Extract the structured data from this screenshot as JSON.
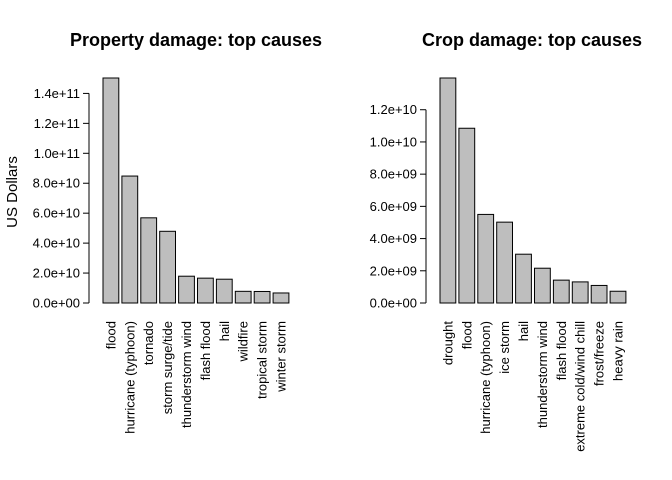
{
  "chart_data": [
    {
      "type": "bar",
      "title": "Property damage: top causes",
      "ylabel": "US Dollars",
      "xlabel": "",
      "categories": [
        "flood",
        "hurricane (typhoon)",
        "tornado",
        "storm surge/tide",
        "thunderstorm wind",
        "flash flood",
        "hail",
        "wildfire",
        "tropical storm",
        "winter storm"
      ],
      "values": [
        150300000000,
        84800000000,
        56900000000,
        47900000000,
        17900000000,
        16600000000,
        15900000000,
        7800000000,
        7700000000,
        6700000000
      ],
      "ylim": [
        0,
        150300000000
      ],
      "yticks": [
        0,
        20000000000,
        40000000000,
        60000000000,
        80000000000,
        100000000000,
        120000000000,
        140000000000
      ],
      "ytick_labels": [
        "0.0e+00",
        "2.0e+10",
        "4.0e+10",
        "6.0e+10",
        "8.0e+10",
        "1.0e+11",
        "1.2e+11",
        "1.4e+11"
      ],
      "bar_color": "#bebebe",
      "grid": false,
      "legend": "none"
    },
    {
      "type": "bar",
      "title": "Crop damage: top causes",
      "ylabel": "",
      "xlabel": "",
      "categories": [
        "drought",
        "flood",
        "hurricane (typhoon)",
        "ice storm",
        "hail",
        "thunderstorm wind",
        "flash flood",
        "extreme cold/wind chill",
        "frost/freeze",
        "heavy rain"
      ],
      "values": [
        13970000000,
        10850000000,
        5500000000,
        5020000000,
        3030000000,
        2160000000,
        1420000000,
        1310000000,
        1090000000,
        730000000
      ],
      "ylim": [
        0,
        13970000000
      ],
      "yticks": [
        0,
        2000000000,
        4000000000,
        6000000000,
        8000000000,
        10000000000,
        12000000000
      ],
      "ytick_labels": [
        "0.0e+00",
        "2.0e+09",
        "4.0e+09",
        "6.0e+09",
        "8.0e+09",
        "1.0e+10",
        "1.2e+10"
      ],
      "bar_color": "#bebebe",
      "grid": false,
      "legend": "none"
    }
  ]
}
